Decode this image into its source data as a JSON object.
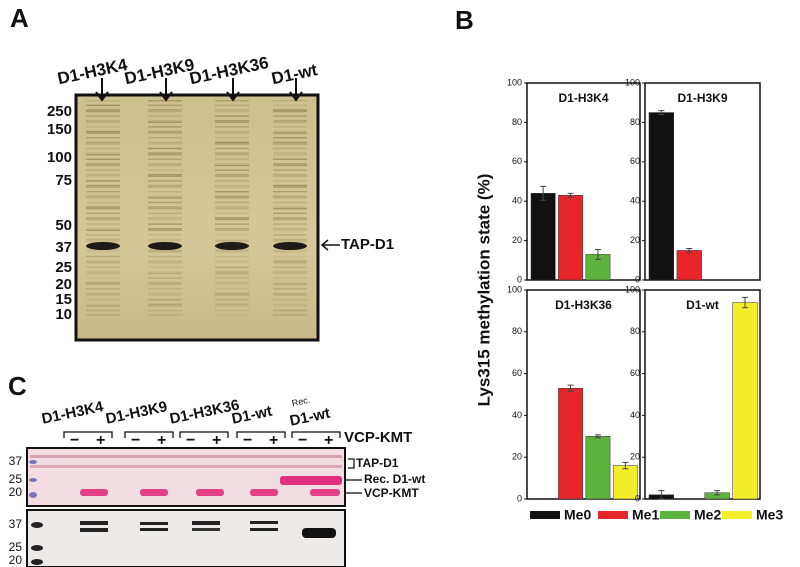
{
  "panel_labels": [
    "A",
    "B",
    "C"
  ],
  "gel_a": {
    "lanes": [
      "D1-H3K4",
      "D1-H3K9",
      "D1-H3K36",
      "D1-wt"
    ],
    "markers": [
      "250",
      "150",
      "100",
      "75",
      "50",
      "37",
      "25",
      "20",
      "15",
      "10"
    ],
    "band_label": "TAP-D1"
  },
  "chart_data": {
    "type": "bar",
    "facets": [
      "D1-H3K4",
      "D1-H3K9",
      "D1-H3K36",
      "D1-wt"
    ],
    "y_label": "Lys315 methylation state (%)",
    "ylim": [
      0,
      100
    ],
    "yticks": [
      0,
      20,
      40,
      60,
      80,
      100
    ],
    "series": [
      {
        "name": "Me0",
        "color": "#111111",
        "values": [
          44,
          85,
          0,
          2
        ],
        "errors": [
          3.5,
          1,
          null,
          2
        ]
      },
      {
        "name": "Me1",
        "color": "#e8262a",
        "values": [
          43,
          15,
          53,
          0
        ],
        "errors": [
          1,
          1,
          1.5,
          null
        ]
      },
      {
        "name": "Me2",
        "color": "#5db33d",
        "values": [
          13,
          0,
          30,
          3
        ],
        "errors": [
          2.5,
          null,
          0.7,
          1
        ]
      },
      {
        "name": "Me3",
        "color": "#f4ee2a",
        "values": [
          0,
          0,
          16,
          94
        ],
        "errors": [
          null,
          null,
          1.5,
          2.5
        ]
      }
    ]
  },
  "gel_c": {
    "lanes": [
      "D1-H3K4",
      "D1-H3K9",
      "D1-H3K36",
      "D1-wt"
    ],
    "rec_lane": [
      "Rec.",
      "D1-wt"
    ],
    "minus": "−",
    "plus": "+",
    "treatment_label": "VCP-KMT",
    "upper_markers": [
      "37",
      "25",
      "20"
    ],
    "lower_markers": [
      "37",
      "25",
      "20"
    ],
    "band_labels": [
      "TAP-D1",
      "Rec. D1-wt",
      "VCP-KMT"
    ]
  }
}
